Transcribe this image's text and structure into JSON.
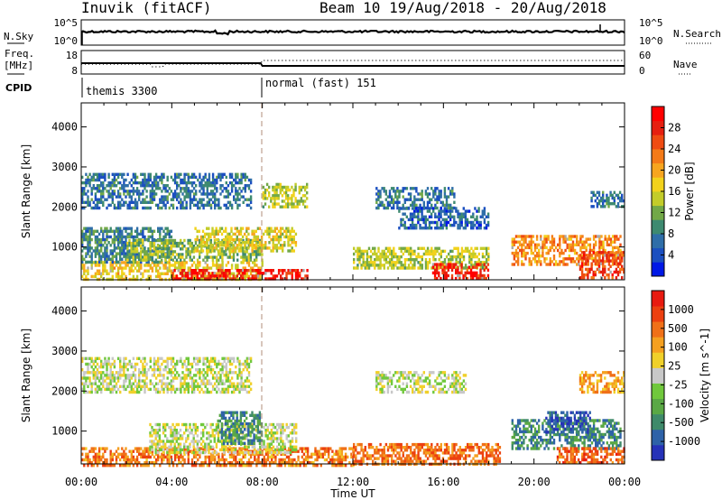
{
  "header": {
    "station": "Inuvik (fitACF)",
    "beam_date": "Beam 10  19/Aug/2018 - 20/Aug/2018"
  },
  "panels": {
    "nsky_label": "N.Sky",
    "nsky_ticks": [
      "10^5",
      "10^0"
    ],
    "nsearch_label": "N.Search",
    "nsearch_ticks": [
      "10^5",
      "10^0"
    ],
    "freq_label_1": "Freq.",
    "freq_label_2": "[MHz]",
    "freq_ticks": [
      "18",
      "8"
    ],
    "nave_label": "Nave",
    "nave_ticks": [
      "60",
      "0"
    ],
    "cpid_label": "CPID",
    "cpid_segments": [
      {
        "name": "themis 3300",
        "start": 0.0
      },
      {
        "name": "normal (fast) 151",
        "start": 8.0
      }
    ]
  },
  "chart_data": [
    {
      "type": "heatmap",
      "title": "",
      "xlabel": "Time UT",
      "ylabel": "Slant Range [km]",
      "xticks": [
        "00:00",
        "04:00",
        "08:00",
        "12:00",
        "16:00",
        "20:00",
        "00:00"
      ],
      "xlim_hours": [
        0,
        24
      ],
      "ylim": [
        180,
        4600
      ],
      "yticks": [
        1000,
        2000,
        3000,
        4000
      ],
      "colorbar": {
        "label": "Power [dB]",
        "ticks": [
          "4",
          "8",
          "12",
          "16",
          "20",
          "24",
          "28"
        ],
        "colors": [
          "#0018e6",
          "#1b4fc0",
          "#2f6ea8",
          "#3e8a70",
          "#72a848",
          "#c3cc2a",
          "#f2d21c",
          "#f7a51f",
          "#f47a18",
          "#ef4b12",
          "#e61f10",
          "#ff0000"
        ]
      },
      "ground_scatter_color": "#aaaaaa",
      "regions": [
        {
          "t": [
            0.0,
            8.0
          ],
          "r": [
            200,
            650
          ],
          "level": 0.55
        },
        {
          "t": [
            4.0,
            10.0
          ],
          "r": [
            180,
            450
          ],
          "level": 0.95
        },
        {
          "t": [
            0.0,
            4.0
          ],
          "r": [
            600,
            1500
          ],
          "level": 0.25
        },
        {
          "t": [
            2.0,
            8.0
          ],
          "r": [
            700,
            1200
          ],
          "level": 0.4
        },
        {
          "t": [
            5.0,
            9.5
          ],
          "r": [
            900,
            1500
          ],
          "level": 0.5
        },
        {
          "t": [
            0.0,
            7.5
          ],
          "r": [
            2000,
            2850
          ],
          "level": 0.2
        },
        {
          "t": [
            8.0,
            10.0
          ],
          "r": [
            2000,
            2600
          ],
          "level": 0.45
        },
        {
          "t": [
            12.0,
            18.0
          ],
          "r": [
            450,
            1000
          ],
          "level": 0.45
        },
        {
          "t": [
            13.0,
            16.5
          ],
          "r": [
            2000,
            2500
          ],
          "level": 0.2
        },
        {
          "t": [
            14.0,
            18.0
          ],
          "r": [
            1500,
            2000
          ],
          "level": 0.15
        },
        {
          "t": [
            15.5,
            18.0
          ],
          "r": [
            250,
            600
          ],
          "level": 0.9
        },
        {
          "t": [
            19.0,
            23.8
          ],
          "r": [
            600,
            1300
          ],
          "level": 0.7
        },
        {
          "t": [
            22.0,
            24.0
          ],
          "r": [
            250,
            900
          ],
          "level": 0.85
        },
        {
          "t": [
            22.5,
            24.0
          ],
          "r": [
            2000,
            2400
          ],
          "level": 0.2
        }
      ]
    },
    {
      "type": "heatmap",
      "title": "",
      "xlabel": "Time UT",
      "ylabel": "Slant Range [km]",
      "xticks": [
        "00:00",
        "04:00",
        "08:00",
        "12:00",
        "16:00",
        "20:00",
        "00:00"
      ],
      "xlim_hours": [
        0,
        24
      ],
      "ylim": [
        180,
        4600
      ],
      "yticks": [
        1000,
        2000,
        3000,
        4000
      ],
      "colorbar": {
        "label": "Velocity [m s^-1]",
        "ticks": [
          "1000",
          "500",
          "100",
          "25",
          "-25",
          "-100",
          "-500",
          "-1000"
        ],
        "colors": [
          "#2632b8",
          "#2e62a8",
          "#3f8a6a",
          "#5aa845",
          "#70c83c",
          "#c8c8c8",
          "#f0d02a",
          "#f5a020",
          "#f07018",
          "#ec4010",
          "#e81a10"
        ]
      },
      "regions": [
        {
          "t": [
            0.0,
            12.0
          ],
          "r": [
            180,
            600
          ],
          "level": 0.78
        },
        {
          "t": [
            3.0,
            9.5
          ],
          "r": [
            500,
            1200
          ],
          "level": 0.5
        },
        {
          "t": [
            0.0,
            7.5
          ],
          "r": [
            2000,
            2850
          ],
          "level": 0.5
        },
        {
          "t": [
            6.0,
            8.0
          ],
          "r": [
            700,
            1500
          ],
          "level": 0.2
        },
        {
          "t": [
            13.0,
            17.0
          ],
          "r": [
            2000,
            2500
          ],
          "level": 0.5
        },
        {
          "t": [
            12.0,
            18.5
          ],
          "r": [
            200,
            700
          ],
          "level": 0.8
        },
        {
          "t": [
            19.0,
            23.8
          ],
          "r": [
            600,
            1300
          ],
          "level": 0.2
        },
        {
          "t": [
            20.5,
            22.5
          ],
          "r": [
            1000,
            1500
          ],
          "level": 0.05
        },
        {
          "t": [
            22.0,
            24.0
          ],
          "r": [
            2000,
            2500
          ],
          "level": 0.7
        },
        {
          "t": [
            21.0,
            24.0
          ],
          "r": [
            200,
            600
          ],
          "level": 0.85
        }
      ]
    }
  ]
}
